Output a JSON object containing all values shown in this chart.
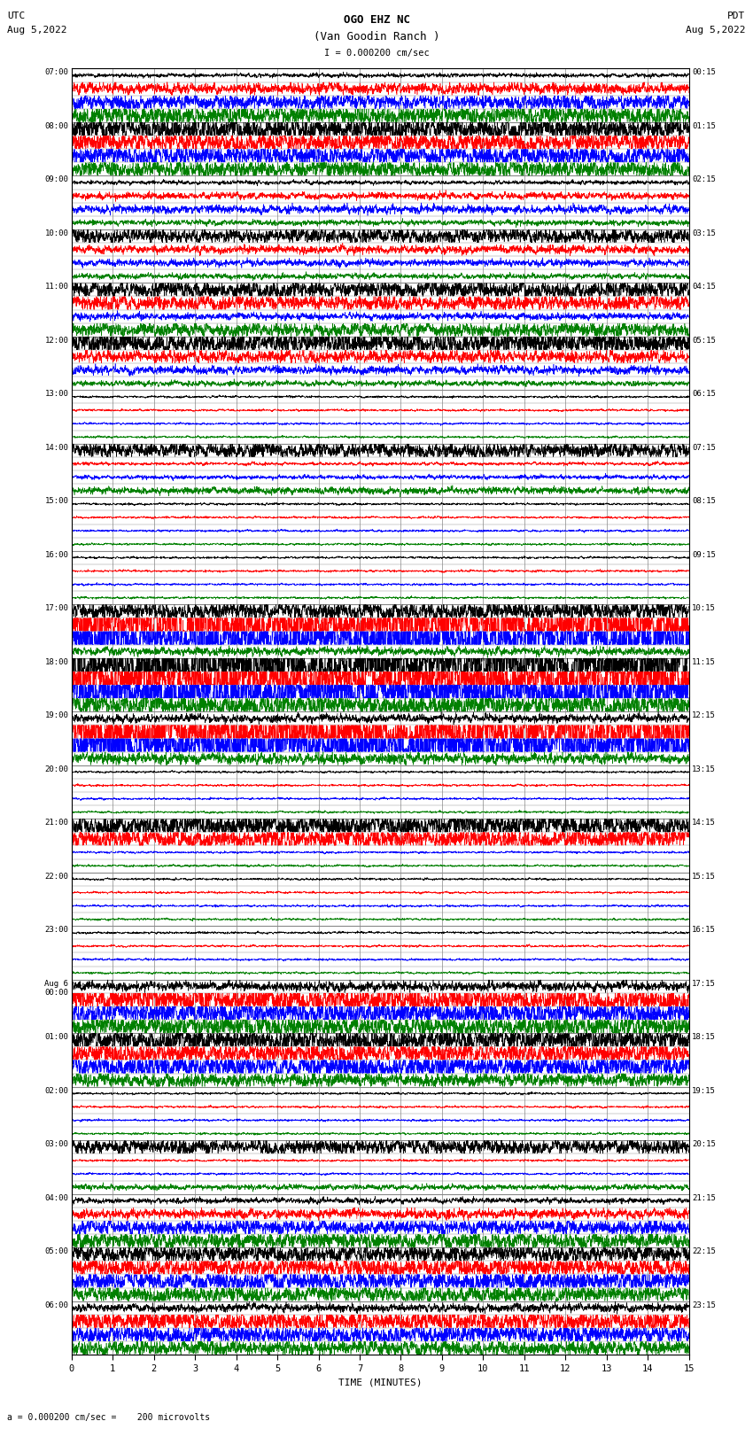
{
  "title_line1": "OGO EHZ NC",
  "title_line2": "(Van Goodin Ranch )",
  "scale_text": "I = 0.000200 cm/sec",
  "scale_label2": "a = 0.000200 cm/sec =    200 microvolts",
  "xlabel": "TIME (MINUTES)",
  "left_header": "UTC",
  "left_date": "Aug 5,2022",
  "right_header": "PDT",
  "right_date": "Aug 5,2022",
  "utc_labels": [
    [
      "07:00",
      0
    ],
    [
      "08:00",
      4
    ],
    [
      "09:00",
      8
    ],
    [
      "10:00",
      12
    ],
    [
      "11:00",
      16
    ],
    [
      "12:00",
      20
    ],
    [
      "13:00",
      24
    ],
    [
      "14:00",
      28
    ],
    [
      "15:00",
      32
    ],
    [
      "16:00",
      36
    ],
    [
      "17:00",
      40
    ],
    [
      "18:00",
      44
    ],
    [
      "19:00",
      48
    ],
    [
      "20:00",
      52
    ],
    [
      "21:00",
      56
    ],
    [
      "22:00",
      60
    ],
    [
      "23:00",
      64
    ],
    [
      "Aug 6\n00:00",
      68
    ],
    [
      "01:00",
      72
    ],
    [
      "02:00",
      76
    ],
    [
      "03:00",
      80
    ],
    [
      "04:00",
      84
    ],
    [
      "05:00",
      88
    ],
    [
      "06:00",
      92
    ]
  ],
  "pdt_labels": [
    [
      "00:15",
      0
    ],
    [
      "01:15",
      4
    ],
    [
      "02:15",
      8
    ],
    [
      "03:15",
      12
    ],
    [
      "04:15",
      16
    ],
    [
      "05:15",
      20
    ],
    [
      "06:15",
      24
    ],
    [
      "07:15",
      28
    ],
    [
      "08:15",
      32
    ],
    [
      "09:15",
      36
    ],
    [
      "10:15",
      40
    ],
    [
      "11:15",
      44
    ],
    [
      "12:15",
      48
    ],
    [
      "13:15",
      52
    ],
    [
      "14:15",
      56
    ],
    [
      "15:15",
      60
    ],
    [
      "16:15",
      64
    ],
    [
      "17:15",
      68
    ],
    [
      "18:15",
      72
    ],
    [
      "19:15",
      76
    ],
    [
      "20:15",
      80
    ],
    [
      "21:15",
      84
    ],
    [
      "22:15",
      88
    ],
    [
      "23:15",
      92
    ]
  ],
  "n_rows": 96,
  "row_colors": [
    "black",
    "red",
    "blue",
    "green"
  ],
  "background_color": "white",
  "grid_color": "#888888",
  "plot_bg": "white",
  "fig_width": 8.5,
  "fig_height": 16.13,
  "row_amplitudes": [
    0.15,
    0.4,
    0.55,
    0.7,
    0.85,
    0.7,
    0.75,
    0.65,
    0.15,
    0.25,
    0.3,
    0.2,
    0.55,
    0.3,
    0.25,
    0.2,
    0.65,
    0.55,
    0.25,
    0.5,
    0.85,
    0.45,
    0.3,
    0.2,
    0.08,
    0.08,
    0.08,
    0.08,
    0.55,
    0.12,
    0.15,
    0.25,
    0.08,
    0.08,
    0.08,
    0.08,
    0.08,
    0.08,
    0.08,
    0.08,
    0.65,
    2.0,
    2.0,
    0.3,
    2.0,
    2.0,
    2.0,
    0.8,
    0.3,
    1.8,
    1.8,
    0.4,
    0.08,
    0.08,
    0.08,
    0.08,
    0.85,
    0.75,
    0.08,
    0.08,
    0.08,
    0.08,
    0.08,
    0.08,
    0.08,
    0.08,
    0.08,
    0.08,
    0.35,
    0.95,
    0.9,
    0.75,
    0.85,
    0.75,
    0.9,
    0.5,
    0.08,
    0.08,
    0.08,
    0.08,
    0.55,
    0.08,
    0.08,
    0.2,
    0.2,
    0.35,
    0.55,
    0.6,
    0.65,
    0.7,
    0.75,
    0.6,
    0.3,
    0.75,
    0.7,
    0.55
  ]
}
